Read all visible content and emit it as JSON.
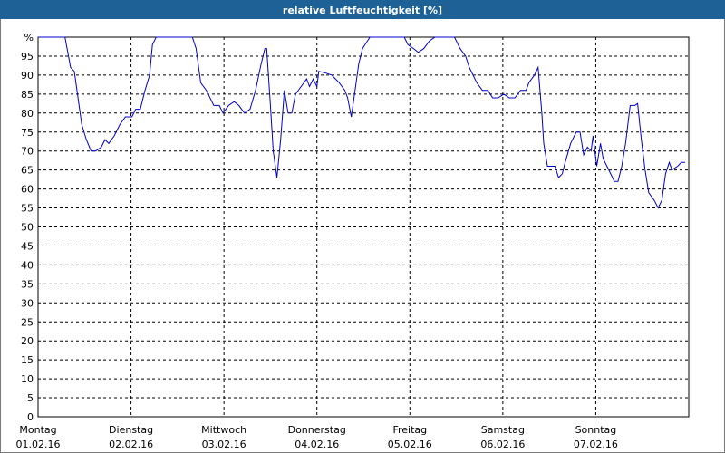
{
  "chart_data": {
    "type": "line",
    "title": "relative Luftfeuchtigkeit [%]",
    "xlim": [
      0,
      7
    ],
    "xticks": [
      {
        "value": 0,
        "label": "Montag",
        "date": "01.02.16"
      },
      {
        "value": 1,
        "label": "Dienstag",
        "date": "02.02.16"
      },
      {
        "value": 2,
        "label": "Mittwoch",
        "date": "03.02.16"
      },
      {
        "value": 3,
        "label": "Donnerstag",
        "date": "04.02.16"
      },
      {
        "value": 4,
        "label": "Freitag",
        "date": "05.02.16"
      },
      {
        "value": 5,
        "label": "Samstag",
        "date": "06.02.16"
      },
      {
        "value": 6,
        "label": "Sonntag",
        "date": "07.02.16"
      }
    ],
    "ylim": [
      0,
      100
    ],
    "yticks": [
      0,
      5,
      10,
      15,
      20,
      25,
      30,
      35,
      40,
      45,
      50,
      55,
      60,
      65,
      70,
      75,
      80,
      85,
      90,
      95,
      {
        "value": 100,
        "label": "%"
      }
    ],
    "grid": true,
    "series": [
      {
        "color": "#0000cc",
        "x": [
          0,
          0.29,
          0.35,
          0.39,
          0.43,
          0.47,
          0.52,
          0.57,
          0.62,
          0.68,
          0.72,
          0.76,
          0.82,
          0.88,
          0.94,
          1.01,
          1.05,
          1.1,
          1.15,
          1.2,
          1.23,
          1.27,
          1.66,
          1.7,
          1.75,
          1.81,
          1.89,
          1.95,
          1.99,
          2.05,
          2.11,
          2.16,
          2.22,
          2.28,
          2.34,
          2.4,
          2.44,
          2.46,
          2.5,
          2.53,
          2.57,
          2.61,
          2.65,
          2.69,
          2.73,
          2.77,
          2.83,
          2.89,
          2.92,
          2.96,
          3.0,
          3.02,
          3.1,
          3.16,
          3.2,
          3.24,
          3.3,
          3.33,
          3.37,
          3.41,
          3.45,
          3.49,
          3.57,
          3.65,
          3.94,
          3.98,
          4.04,
          4.09,
          4.15,
          4.21,
          4.27,
          4.48,
          4.54,
          4.6,
          4.64,
          4.68,
          4.72,
          4.78,
          4.84,
          4.89,
          4.95,
          5.01,
          5.07,
          5.13,
          5.19,
          5.25,
          5.28,
          5.34,
          5.38,
          5.42,
          5.44,
          5.48,
          5.52,
          5.56,
          5.6,
          5.64,
          5.67,
          5.73,
          5.79,
          5.83,
          5.87,
          5.91,
          5.95,
          5.97,
          6.01,
          6.05,
          6.08,
          6.14,
          6.2,
          6.24,
          6.28,
          6.32,
          6.37,
          6.42,
          6.45,
          6.49,
          6.53,
          6.57,
          6.63,
          6.67,
          6.71,
          6.75,
          6.79,
          6.82,
          6.88,
          6.92,
          6.96
        ],
        "values": [
          100,
          100,
          92,
          91,
          84,
          77,
          73,
          70,
          70,
          71,
          73,
          72,
          74,
          77,
          79,
          79,
          81,
          81,
          86,
          90,
          98,
          100,
          100,
          97,
          88,
          86,
          82,
          82,
          80,
          82,
          83,
          82,
          80,
          81,
          86,
          93,
          97,
          97,
          82,
          70,
          63,
          73,
          86,
          80,
          80,
          85,
          87,
          89,
          87,
          89,
          87,
          91,
          90.5,
          90,
          89,
          88,
          86,
          84,
          79,
          86,
          93,
          97,
          100,
          100,
          100,
          98,
          97,
          96,
          97,
          99,
          100,
          100,
          97,
          95,
          92,
          90,
          88,
          86,
          86,
          84,
          84,
          85,
          84,
          84,
          86,
          86,
          88,
          90,
          92,
          80,
          72,
          66,
          66,
          66,
          63,
          64,
          67,
          72,
          75,
          75,
          69,
          71,
          70,
          74,
          66,
          72,
          68,
          65,
          62,
          62,
          66,
          72,
          82,
          82,
          82.5,
          73,
          65,
          59,
          57,
          55,
          57,
          64,
          67,
          65,
          66,
          67,
          67
        ]
      }
    ]
  }
}
